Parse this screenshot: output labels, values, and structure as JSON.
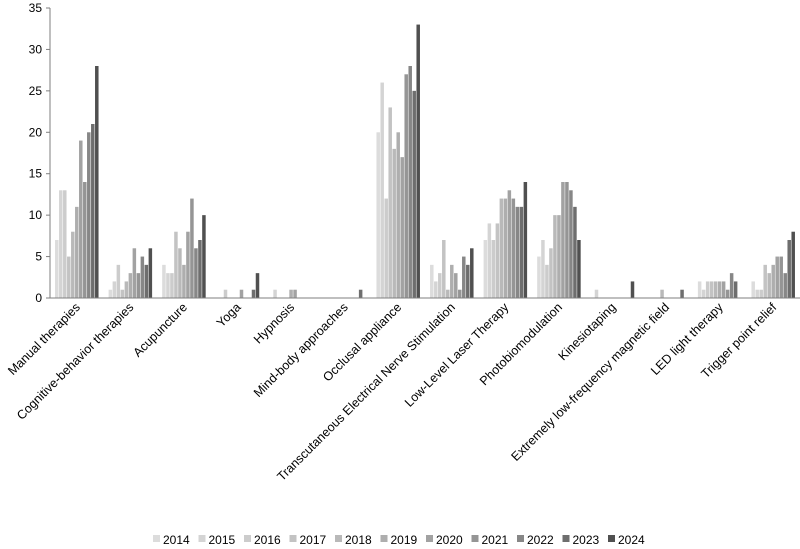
{
  "chart_data": {
    "type": "bar",
    "title": "",
    "xlabel": "",
    "ylabel": "",
    "ylim": [
      0,
      35
    ],
    "yticks": [
      0,
      5,
      10,
      15,
      20,
      25,
      30,
      35
    ],
    "grid": false,
    "legend_position": "bottom",
    "categories": [
      "Manual therapies",
      "Cognitive-behavior therapies",
      "Acupuncture",
      "Yoga",
      "Hypnosis",
      "Mind-body approaches",
      "Occlusal appliance",
      "Transcutaneous Electrical Nerve Stimulation",
      "Low-Level Laser Therapy",
      "Photobiomodulation",
      "Kinesiotaping",
      "Extremely low-frequency magnetic field",
      "LED light therapy",
      "Trigger point relief"
    ],
    "series": [
      {
        "name": "2014",
        "color": "#dcdcdc",
        "values": [
          7,
          1,
          4,
          0,
          0,
          0,
          20,
          4,
          7,
          5,
          0,
          0,
          2,
          2
        ]
      },
      {
        "name": "2015",
        "color": "#d4d4d4",
        "values": [
          13,
          2,
          3,
          0,
          1,
          0,
          26,
          2,
          9,
          7,
          1,
          0,
          1,
          1
        ]
      },
      {
        "name": "2016",
        "color": "#cccccc",
        "values": [
          13,
          4,
          3,
          1,
          0,
          0,
          12,
          3,
          7,
          4,
          0,
          0,
          2,
          1
        ]
      },
      {
        "name": "2017",
        "color": "#c3c3c3",
        "values": [
          5,
          1,
          8,
          0,
          0,
          0,
          23,
          7,
          9,
          6,
          0,
          0,
          2,
          4
        ]
      },
      {
        "name": "2018",
        "color": "#b9b9b9",
        "values": [
          8,
          2,
          6,
          0,
          0,
          0,
          18,
          1,
          12,
          10,
          0,
          1,
          2,
          3
        ]
      },
      {
        "name": "2019",
        "color": "#aeaeae",
        "values": [
          11,
          3,
          4,
          0,
          1,
          0,
          20,
          4,
          12,
          10,
          0,
          0,
          2,
          4
        ]
      },
      {
        "name": "2020",
        "color": "#a2a2a2",
        "values": [
          19,
          6,
          8,
          1,
          1,
          0,
          17,
          3,
          13,
          14,
          0,
          0,
          2,
          5
        ]
      },
      {
        "name": "2021",
        "color": "#959595",
        "values": [
          14,
          3,
          12,
          0,
          0,
          0,
          27,
          1,
          12,
          14,
          0,
          0,
          1,
          5
        ]
      },
      {
        "name": "2022",
        "color": "#878787",
        "values": [
          20,
          5,
          6,
          0,
          0,
          0,
          28,
          5,
          11,
          13,
          0,
          0,
          3,
          3
        ]
      },
      {
        "name": "2023",
        "color": "#6e6e6e",
        "values": [
          21,
          4,
          7,
          1,
          0,
          1,
          25,
          4,
          11,
          11,
          0,
          1,
          2,
          7
        ]
      },
      {
        "name": "2024",
        "color": "#505050",
        "values": [
          28,
          6,
          10,
          3,
          0,
          0,
          33,
          6,
          14,
          7,
          2,
          0,
          0,
          8
        ]
      }
    ]
  }
}
